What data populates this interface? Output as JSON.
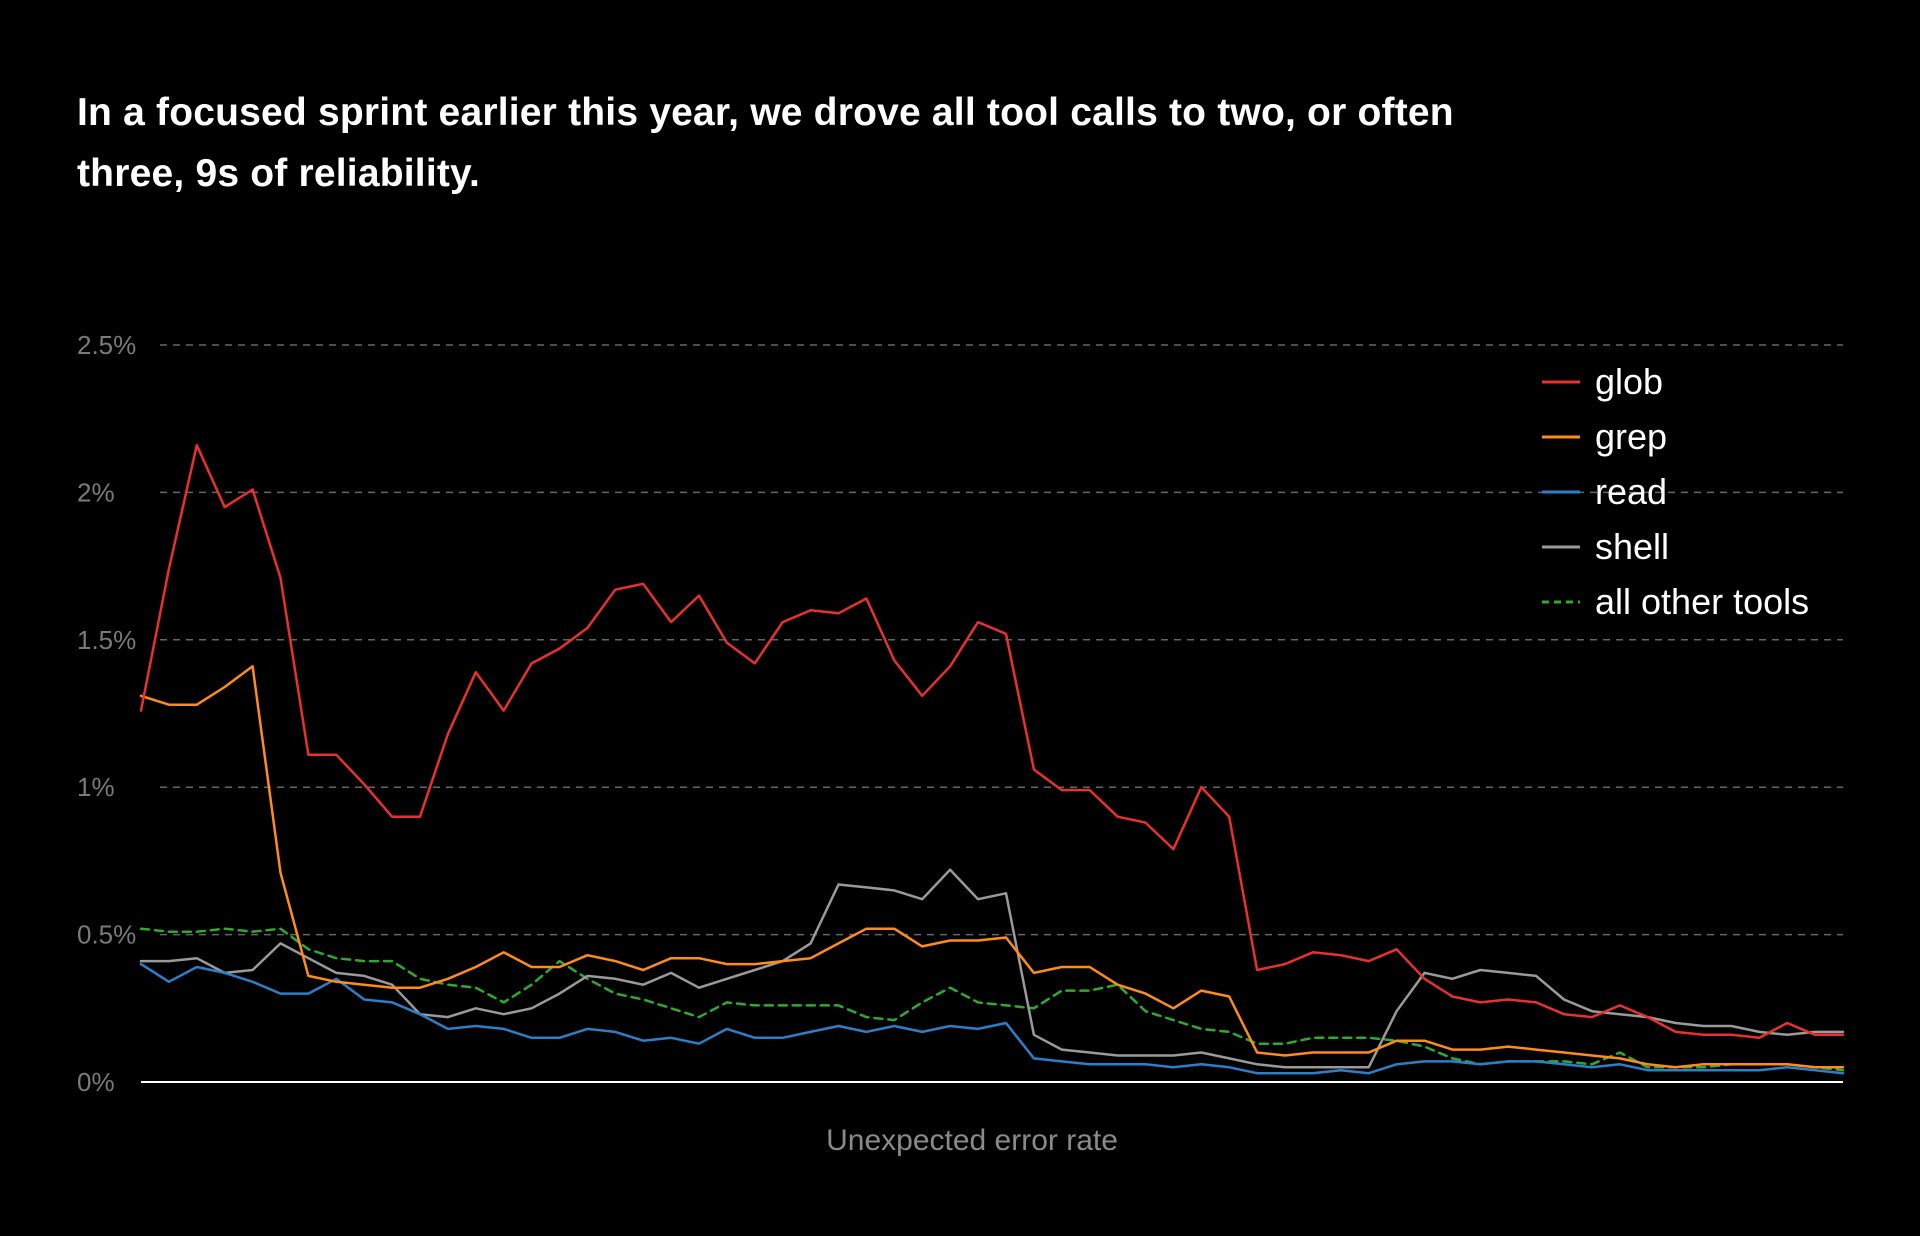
{
  "title": "In a focused sprint earlier this year, we drove all tool calls to two, or often three, 9s of reliability.",
  "colors": {
    "background": "#000000",
    "grid": "#666666",
    "axis": "#ffffff",
    "tick_text": "#7a7a7a"
  },
  "chart_data": {
    "type": "line",
    "title": "In a focused sprint earlier this year, we drove all tool calls to two, or often three, 9s of reliability.",
    "xlabel": "Unexpected error rate",
    "ylabel": "",
    "ylim": [
      0,
      2.5
    ],
    "yticks": [
      0,
      0.5,
      1,
      1.5,
      2,
      2.5
    ],
    "ytick_labels": [
      "0%",
      "0.5%",
      "1%",
      "1.5%",
      "2%",
      "2.5%"
    ],
    "grid": true,
    "legend_position": "top-right",
    "x": [
      1,
      2,
      3,
      4,
      5,
      6,
      7,
      8,
      9,
      10,
      11,
      12,
      13,
      14,
      15,
      16,
      17,
      18,
      19,
      20,
      21,
      22,
      23,
      24,
      25,
      26,
      27,
      28,
      29,
      30,
      31,
      32,
      33,
      34,
      35,
      36,
      37,
      38,
      39,
      40,
      41,
      42,
      43,
      44,
      45,
      46,
      47,
      48,
      49,
      50,
      51,
      52,
      53,
      54,
      55,
      56,
      57,
      58,
      59,
      60,
      61,
      62
    ],
    "series": [
      {
        "name": "glob",
        "color": "#e8312f",
        "dashed": false,
        "values": [
          1.26,
          1.74,
          2.16,
          1.95,
          2.01,
          1.71,
          1.11,
          1.11,
          1.01,
          0.9,
          0.9,
          1.18,
          1.39,
          1.26,
          1.42,
          1.47,
          1.54,
          1.67,
          1.69,
          1.56,
          1.65,
          1.49,
          1.42,
          1.56,
          1.6,
          1.59,
          1.64,
          1.43,
          1.31,
          1.41,
          1.56,
          1.52,
          1.06,
          0.99,
          0.99,
          0.9,
          0.88,
          0.79,
          1.0,
          0.9,
          0.38,
          0.4,
          0.44,
          0.43,
          0.41,
          0.45,
          0.35,
          0.29,
          0.27,
          0.28,
          0.27,
          0.23,
          0.22,
          0.26,
          0.22,
          0.17,
          0.16,
          0.16,
          0.15,
          0.2,
          0.16,
          0.16
        ]
      },
      {
        "name": "grep",
        "color": "#ff8c1a",
        "dashed": false,
        "values": [
          1.31,
          1.28,
          1.28,
          1.34,
          1.41,
          0.71,
          0.36,
          0.34,
          0.33,
          0.32,
          0.32,
          0.35,
          0.39,
          0.44,
          0.39,
          0.39,
          0.43,
          0.41,
          0.38,
          0.42,
          0.42,
          0.4,
          0.4,
          0.41,
          0.42,
          0.47,
          0.52,
          0.52,
          0.46,
          0.48,
          0.48,
          0.49,
          0.37,
          0.39,
          0.39,
          0.33,
          0.3,
          0.25,
          0.31,
          0.29,
          0.1,
          0.09,
          0.1,
          0.1,
          0.1,
          0.14,
          0.14,
          0.11,
          0.11,
          0.12,
          0.11,
          0.1,
          0.09,
          0.08,
          0.06,
          0.05,
          0.06,
          0.06,
          0.06,
          0.06,
          0.05,
          0.05
        ]
      },
      {
        "name": "read",
        "color": "#2a7fc8",
        "dashed": false,
        "values": [
          0.4,
          0.34,
          0.39,
          0.37,
          0.34,
          0.3,
          0.3,
          0.35,
          0.28,
          0.27,
          0.23,
          0.18,
          0.19,
          0.18,
          0.15,
          0.15,
          0.18,
          0.17,
          0.14,
          0.15,
          0.13,
          0.18,
          0.15,
          0.15,
          0.17,
          0.19,
          0.17,
          0.19,
          0.17,
          0.19,
          0.18,
          0.2,
          0.08,
          0.07,
          0.06,
          0.06,
          0.06,
          0.05,
          0.06,
          0.05,
          0.03,
          0.03,
          0.03,
          0.04,
          0.03,
          0.06,
          0.07,
          0.07,
          0.06,
          0.07,
          0.07,
          0.06,
          0.05,
          0.06,
          0.04,
          0.04,
          0.04,
          0.04,
          0.04,
          0.05,
          0.04,
          0.03
        ]
      },
      {
        "name": "shell",
        "color": "#9a9a9a",
        "dashed": false,
        "values": [
          0.41,
          0.41,
          0.42,
          0.37,
          0.38,
          0.47,
          0.42,
          0.37,
          0.36,
          0.33,
          0.23,
          0.22,
          0.25,
          0.23,
          0.25,
          0.3,
          0.36,
          0.35,
          0.33,
          0.37,
          0.32,
          0.35,
          0.38,
          0.41,
          0.47,
          0.67,
          0.66,
          0.65,
          0.62,
          0.72,
          0.62,
          0.64,
          0.16,
          0.11,
          0.1,
          0.09,
          0.09,
          0.09,
          0.1,
          0.08,
          0.06,
          0.05,
          0.05,
          0.05,
          0.05,
          0.24,
          0.37,
          0.35,
          0.38,
          0.37,
          0.36,
          0.28,
          0.24,
          0.23,
          0.22,
          0.2,
          0.19,
          0.19,
          0.17,
          0.16,
          0.17,
          0.17
        ]
      },
      {
        "name": "all other tools",
        "color": "#2eaa2e",
        "dashed": true,
        "values": [
          0.52,
          0.51,
          0.51,
          0.52,
          0.51,
          0.52,
          0.45,
          0.42,
          0.41,
          0.41,
          0.35,
          0.33,
          0.32,
          0.27,
          0.33,
          0.41,
          0.35,
          0.3,
          0.28,
          0.25,
          0.22,
          0.27,
          0.26,
          0.26,
          0.26,
          0.26,
          0.22,
          0.21,
          0.27,
          0.32,
          0.27,
          0.26,
          0.25,
          0.31,
          0.31,
          0.33,
          0.24,
          0.21,
          0.18,
          0.17,
          0.13,
          0.13,
          0.15,
          0.15,
          0.15,
          0.14,
          0.12,
          0.08,
          0.06,
          0.07,
          0.07,
          0.07,
          0.06,
          0.1,
          0.05,
          0.05,
          0.05,
          0.06,
          0.06,
          0.06,
          0.05,
          0.04
        ]
      }
    ]
  }
}
